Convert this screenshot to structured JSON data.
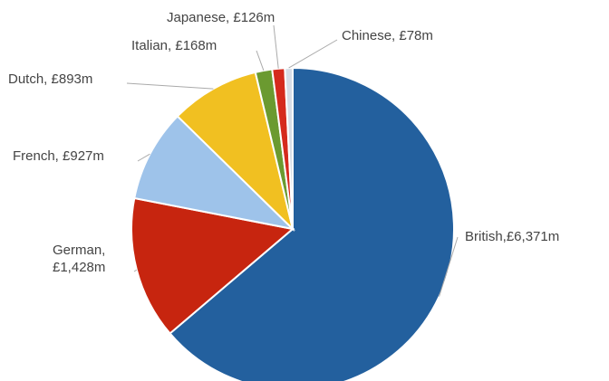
{
  "chart_data": {
    "type": "pie",
    "title": "",
    "unit": "£m",
    "slices": [
      {
        "name": "British",
        "value": 6371,
        "color": "#23609e",
        "label": "British,£6,371m",
        "label_lines": [
          "British,£6,371m"
        ]
      },
      {
        "name": "German",
        "value": 1428,
        "color": "#c7250f",
        "label": "German, £1,428m",
        "label_lines": [
          "German,",
          "£1,428m"
        ]
      },
      {
        "name": "French",
        "value": 927,
        "color": "#9ec3ea",
        "label": "French, £927m",
        "label_lines": [
          "French, £927m"
        ]
      },
      {
        "name": "Dutch",
        "value": 893,
        "color": "#f1c021",
        "label": "Dutch, £893m",
        "label_lines": [
          "Dutch, £893m"
        ]
      },
      {
        "name": "Italian",
        "value": 168,
        "color": "#6b9a30",
        "label": "Italian, £168m",
        "label_lines": [
          "Italian, £168m"
        ]
      },
      {
        "name": "Japanese",
        "value": 126,
        "color": "#d52a1d",
        "label": "Japanese, £126m",
        "label_lines": [
          "Japanese, £126m"
        ]
      },
      {
        "name": "Chinese",
        "value": 78,
        "color": "#d7dde6",
        "label": "Chinese, £78m",
        "label_lines": [
          "Chinese, £78m"
        ]
      }
    ]
  }
}
